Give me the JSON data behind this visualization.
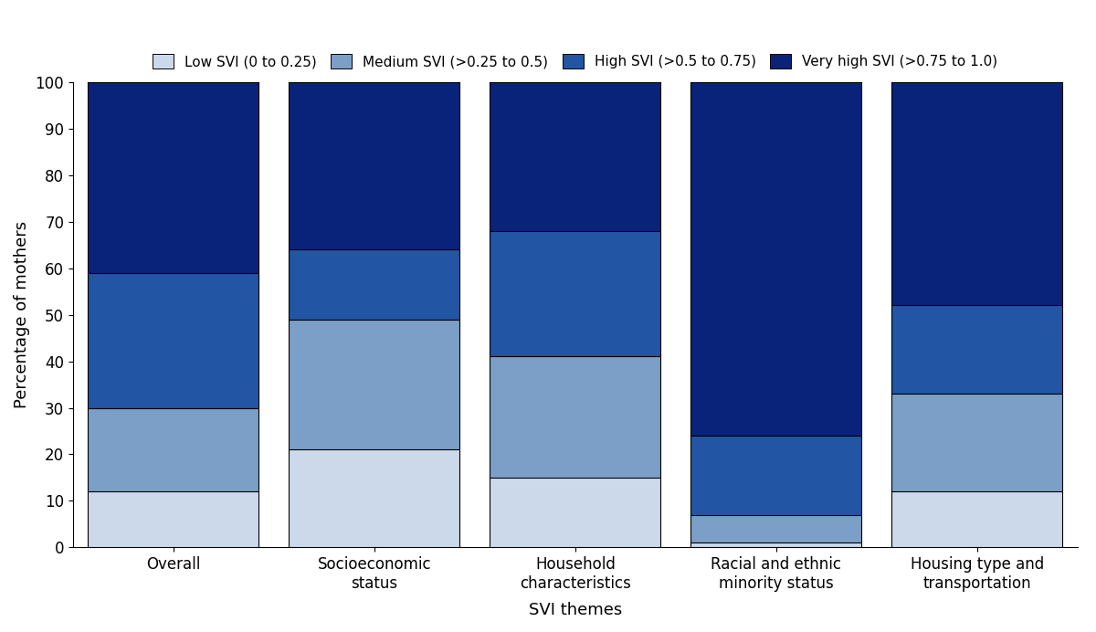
{
  "categories": [
    "Overall",
    "Socioeconomic\nstatus",
    "Household\ncharacteristics",
    "Racial and ethnic\nminority status",
    "Housing type and\ntransportation"
  ],
  "xlabel": "SVI themes",
  "ylabel": "Percentage of mothers",
  "ylim": [
    0,
    100
  ],
  "bar_width": 0.85,
  "colors": {
    "low": "#ccd9ea",
    "medium": "#7b9fc7",
    "high": "#2255a4",
    "very_high": "#0a237a"
  },
  "legend_labels": [
    "Low SVI (0 to 0.25)",
    "Medium SVI (>0.25 to 0.5)",
    "High SVI (>0.5 to 0.75)",
    "Very high SVI (>0.75 to 1.0)"
  ],
  "data": {
    "low": [
      12,
      21,
      15,
      1,
      12
    ],
    "medium": [
      18,
      28,
      26,
      6,
      21
    ],
    "high": [
      29,
      15,
      27,
      17,
      19
    ],
    "very_high": [
      41,
      36,
      32,
      76,
      48
    ]
  },
  "background_color": "#ffffff",
  "tick_fontsize": 12,
  "label_fontsize": 13,
  "legend_fontsize": 11
}
